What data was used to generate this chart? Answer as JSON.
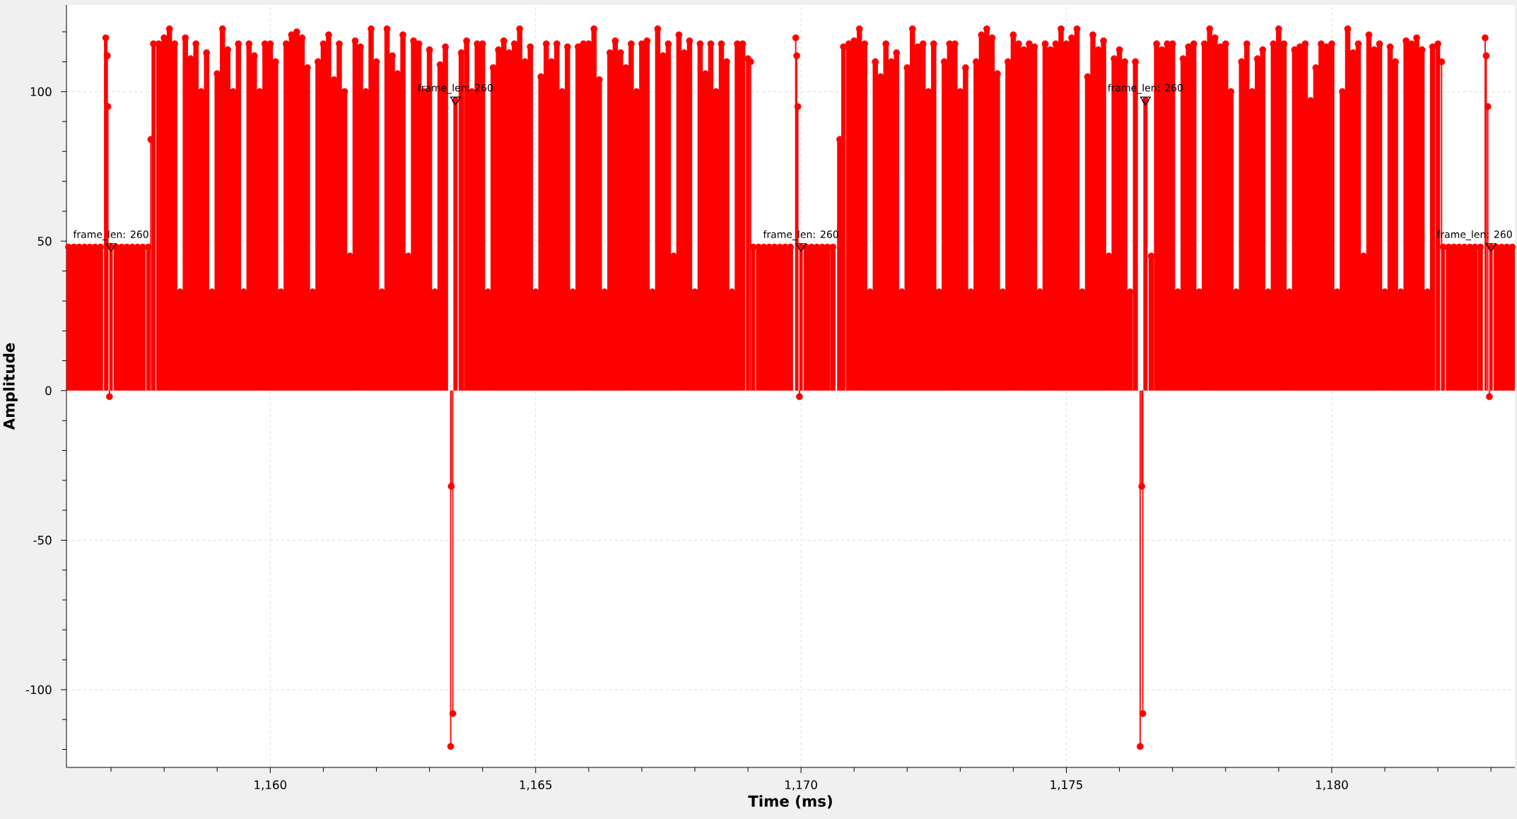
{
  "chart_data": {
    "type": "lollipop",
    "xlabel": "Time (ms)",
    "ylabel": "Amplitude",
    "xlim": [
      1156.16,
      1183.45
    ],
    "ylim": [
      -126,
      129
    ],
    "xticks": [
      {
        "value": 1157,
        "label": null
      },
      {
        "value": 1158,
        "label": null
      },
      {
        "value": 1159,
        "label": null
      },
      {
        "value": 1160,
        "label": "1,160"
      },
      {
        "value": 1161,
        "label": null
      },
      {
        "value": 1162,
        "label": null
      },
      {
        "value": 1163,
        "label": null
      },
      {
        "value": 1164,
        "label": null
      },
      {
        "value": 1165,
        "label": "1,165"
      },
      {
        "value": 1166,
        "label": null
      },
      {
        "value": 1167,
        "label": null
      },
      {
        "value": 1168,
        "label": null
      },
      {
        "value": 1169,
        "label": null
      },
      {
        "value": 1170,
        "label": "1,170"
      },
      {
        "value": 1171,
        "label": null
      },
      {
        "value": 1172,
        "label": null
      },
      {
        "value": 1173,
        "label": null
      },
      {
        "value": 1174,
        "label": null
      },
      {
        "value": 1175,
        "label": "1,175"
      },
      {
        "value": 1176,
        "label": null
      },
      {
        "value": 1177,
        "label": null
      },
      {
        "value": 1178,
        "label": null
      },
      {
        "value": 1179,
        "label": null
      },
      {
        "value": 1180,
        "label": "1,180"
      },
      {
        "value": 1181,
        "label": null
      },
      {
        "value": 1182,
        "label": null
      },
      {
        "value": 1183,
        "label": null
      }
    ],
    "yticks": [
      {
        "value": -120,
        "label": null
      },
      {
        "value": -110,
        "label": null
      },
      -100,
      {
        "value": -90,
        "label": null
      },
      {
        "value": -80,
        "label": null
      },
      {
        "value": -70,
        "label": null
      },
      {
        "value": -60,
        "label": null
      },
      -50,
      {
        "value": -40,
        "label": null
      },
      {
        "value": -30,
        "label": null
      },
      {
        "value": -20,
        "label": null
      },
      {
        "value": -10,
        "label": null
      },
      0,
      {
        "value": 10,
        "label": null
      },
      {
        "value": 20,
        "label": null
      },
      {
        "value": 30,
        "label": null
      },
      {
        "value": 40,
        "label": null
      },
      50,
      {
        "value": 60,
        "label": null
      },
      {
        "value": 70,
        "label": null
      },
      {
        "value": 80,
        "label": null
      },
      {
        "value": 90,
        "label": null
      },
      100,
      {
        "value": 110,
        "label": null
      },
      {
        "value": 120,
        "label": null
      }
    ],
    "grid": true,
    "marker": "circle",
    "annotations": [
      {
        "text": "frame_len: 260",
        "x": 1157.0,
        "y": 48
      },
      {
        "text": "frame_len: 260",
        "x": 1163.49,
        "y": 97
      },
      {
        "text": "frame_len: 260",
        "x": 1170.0,
        "y": 48
      },
      {
        "text": "frame_len: 260",
        "x": 1176.49,
        "y": 97
      },
      {
        "text": "frame_len: 260",
        "x": 1183.0,
        "y": 48
      }
    ],
    "series": [
      {
        "color": "#ff0000",
        "x": [
          1156.2,
          1156.3,
          1156.4,
          1156.5,
          1156.6,
          1156.7,
          1156.8,
          1156.9,
          1156.93,
          1156.94,
          1156.97,
          1157.0,
          1157.1,
          1157.2,
          1157.3,
          1157.4,
          1157.5,
          1157.6,
          1157.7,
          1157.75,
          1157.8,
          1157.9,
          1158.0,
          1158.1,
          1158.2,
          1158.3,
          1158.4,
          1158.5,
          1158.6,
          1158.7,
          1158.8,
          1158.9,
          1159.0,
          1159.1,
          1159.2,
          1159.3,
          1159.4,
          1159.5,
          1159.6,
          1159.7,
          1159.8,
          1159.9,
          1160.0,
          1160.1,
          1160.2,
          1160.3,
          1160.4,
          1160.5,
          1160.6,
          1160.7,
          1160.8,
          1160.9,
          1161.0,
          1161.1,
          1161.2,
          1161.3,
          1161.4,
          1161.5,
          1161.6,
          1161.7,
          1161.8,
          1161.9,
          1162.0,
          1162.1,
          1162.2,
          1162.3,
          1162.4,
          1162.5,
          1162.6,
          1162.7,
          1162.8,
          1162.9,
          1163.0,
          1163.1,
          1163.2,
          1163.3,
          1163.4,
          1163.41,
          1163.44,
          1163.49,
          1163.6,
          1163.7,
          1163.8,
          1163.9,
          1164.0,
          1164.1,
          1164.2,
          1164.3,
          1164.4,
          1164.5,
          1164.6,
          1164.7,
          1164.8,
          1164.9,
          1165.0,
          1165.1,
          1165.2,
          1165.3,
          1165.4,
          1165.5,
          1165.6,
          1165.7,
          1165.8,
          1165.9,
          1166.0,
          1166.1,
          1166.2,
          1166.3,
          1166.4,
          1166.5,
          1166.6,
          1166.7,
          1166.8,
          1166.9,
          1167.0,
          1167.1,
          1167.2,
          1167.3,
          1167.4,
          1167.5,
          1167.6,
          1167.7,
          1167.8,
          1167.9,
          1168.0,
          1168.1,
          1168.2,
          1168.3,
          1168.4,
          1168.5,
          1168.6,
          1168.7,
          1168.8,
          1168.9,
          1169.0,
          1169.05,
          1169.1,
          1169.2,
          1169.3,
          1169.4,
          1169.5,
          1169.6,
          1169.7,
          1169.8,
          1169.9,
          1169.92,
          1169.94,
          1169.97,
          1170.0,
          1170.1,
          1170.2,
          1170.3,
          1170.4,
          1170.5,
          1170.6,
          1170.73,
          1170.8,
          1170.9,
          1171.0,
          1171.1,
          1171.2,
          1171.3,
          1171.4,
          1171.5,
          1171.6,
          1171.7,
          1171.8,
          1171.9,
          1172.0,
          1172.1,
          1172.2,
          1172.3,
          1172.4,
          1172.5,
          1172.6,
          1172.7,
          1172.8,
          1172.9,
          1173.0,
          1173.1,
          1173.2,
          1173.3,
          1173.4,
          1173.5,
          1173.6,
          1173.7,
          1173.8,
          1173.9,
          1174.0,
          1174.1,
          1174.2,
          1174.3,
          1174.4,
          1174.5,
          1174.6,
          1174.7,
          1174.8,
          1174.9,
          1175.0,
          1175.1,
          1175.2,
          1175.3,
          1175.4,
          1175.5,
          1175.6,
          1175.7,
          1175.8,
          1175.9,
          1176.0,
          1176.1,
          1176.2,
          1176.3,
          1176.39,
          1176.42,
          1176.44,
          1176.49,
          1176.6,
          1176.7,
          1176.8,
          1176.9,
          1177.0,
          1177.1,
          1177.2,
          1177.3,
          1177.4,
          1177.5,
          1177.6,
          1177.7,
          1177.8,
          1177.9,
          1178.0,
          1178.1,
          1178.2,
          1178.3,
          1178.4,
          1178.5,
          1178.6,
          1178.7,
          1178.8,
          1178.9,
          1179.0,
          1179.1,
          1179.2,
          1179.3,
          1179.4,
          1179.5,
          1179.6,
          1179.7,
          1179.8,
          1179.9,
          1180.0,
          1180.1,
          1180.2,
          1180.3,
          1180.4,
          1180.5,
          1180.6,
          1180.7,
          1180.8,
          1180.9,
          1181.0,
          1181.1,
          1181.2,
          1181.3,
          1181.4,
          1181.5,
          1181.6,
          1181.7,
          1181.8,
          1181.9,
          1182.0,
          1182.07,
          1182.1,
          1182.2,
          1182.3,
          1182.4,
          1182.5,
          1182.6,
          1182.7,
          1182.8,
          1182.89,
          1182.91,
          1182.94,
          1182.97,
          1183.0,
          1183.1,
          1183.2,
          1183.3,
          1183.4
        ],
        "values": [
          48,
          48,
          48,
          48,
          48,
          48,
          48,
          118,
          112,
          95,
          -2,
          48,
          48,
          48,
          48,
          48,
          48,
          48,
          48,
          84,
          116,
          116,
          118,
          121,
          116,
          33,
          118,
          111,
          116,
          100,
          113,
          33,
          106,
          121,
          114,
          100,
          116,
          33,
          116,
          112,
          100,
          116,
          116,
          110,
          33,
          116,
          119,
          120,
          118,
          108,
          33,
          110,
          116,
          119,
          104,
          116,
          100,
          45,
          117,
          115,
          100,
          121,
          110,
          33,
          121,
          112,
          106,
          119,
          45,
          117,
          116,
          100,
          114,
          33,
          109,
          115,
          -119,
          -32,
          -108,
          97,
          113,
          117,
          100,
          116,
          116,
          33,
          108,
          114,
          117,
          113,
          116,
          121,
          110,
          115,
          33,
          105,
          116,
          110,
          116,
          100,
          115,
          33,
          115,
          116,
          116,
          121,
          104,
          33,
          113,
          117,
          113,
          108,
          116,
          100,
          116,
          117,
          33,
          121,
          112,
          116,
          45,
          119,
          113,
          117,
          33,
          116,
          106,
          116,
          100,
          116,
          110,
          33,
          116,
          116,
          111,
          110,
          48,
          48,
          48,
          48,
          48,
          48,
          48,
          48,
          118,
          112,
          95,
          -2,
          48,
          48,
          48,
          48,
          48,
          48,
          48,
          84,
          115,
          116,
          117,
          121,
          116,
          33,
          110,
          105,
          116,
          110,
          113,
          33,
          108,
          121,
          115,
          116,
          100,
          116,
          33,
          110,
          116,
          116,
          100,
          108,
          33,
          110,
          119,
          121,
          118,
          106,
          33,
          110,
          119,
          116,
          114,
          116,
          115,
          33,
          116,
          114,
          116,
          121,
          116,
          118,
          121,
          33,
          105,
          119,
          114,
          117,
          45,
          111,
          114,
          110,
          33,
          110,
          -119,
          -32,
          -108,
          97,
          45,
          116,
          114,
          116,
          116,
          33,
          111,
          115,
          116,
          33,
          116,
          121,
          118,
          115,
          116,
          100,
          33,
          110,
          116,
          100,
          111,
          114,
          33,
          116,
          121,
          116,
          33,
          114,
          115,
          116,
          97,
          108,
          116,
          115,
          116,
          33,
          100,
          121,
          113,
          116,
          45,
          119,
          114,
          116,
          33,
          115,
          110,
          33,
          117,
          116,
          118,
          114,
          33,
          115,
          116,
          110,
          48,
          48,
          48,
          48,
          48,
          48,
          48,
          48,
          118,
          112,
          95,
          -2,
          48,
          48,
          48,
          48,
          48
        ]
      }
    ]
  }
}
